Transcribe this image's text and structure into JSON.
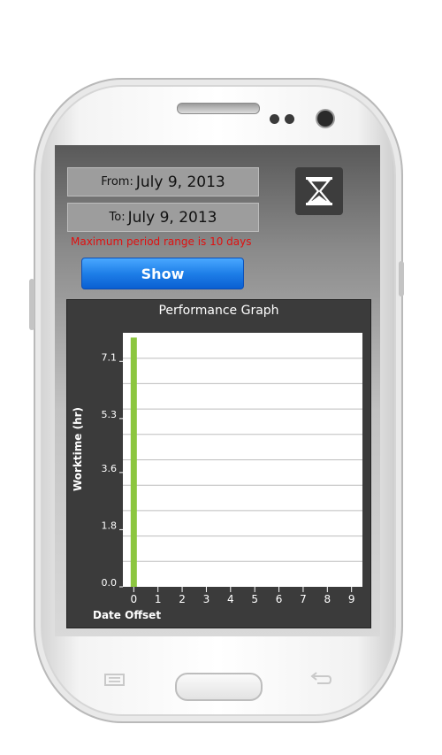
{
  "form": {
    "from_label": "From:",
    "from_value": "July 9, 2013",
    "to_label": "To:",
    "to_value": "July 9, 2013",
    "warning": "Maximum period range is 10 days",
    "show_label": "Show"
  },
  "icons": {
    "clear": "hourglass-icon",
    "nav_menu": "menu-icon",
    "nav_back": "back-icon"
  },
  "colors": {
    "warning": "#e01010",
    "button": "#1e7fe8",
    "bar": "#8cc63f"
  },
  "chart_data": {
    "type": "bar",
    "title": "Performance Graph",
    "xlabel": "Date Offset",
    "ylabel": "Worktime (hr)",
    "x": [
      0,
      1,
      2,
      3,
      4,
      5,
      6,
      7,
      8,
      9
    ],
    "x_tick_labels": [
      "0",
      "1",
      "2",
      "3",
      "4",
      "5",
      "6",
      "7",
      "8",
      "9"
    ],
    "y_tick_labels": [
      "0.0",
      "1.8",
      "3.6",
      "5.3",
      "7.1"
    ],
    "y_ticks": [
      0.0,
      1.8,
      3.6,
      5.3,
      7.1
    ],
    "values": [
      7.85,
      0,
      0,
      0,
      0,
      0,
      0,
      0,
      0,
      0
    ],
    "ylim": [
      0,
      8.0
    ],
    "xlim": [
      -0.45,
      9.45
    ],
    "grid": true
  }
}
